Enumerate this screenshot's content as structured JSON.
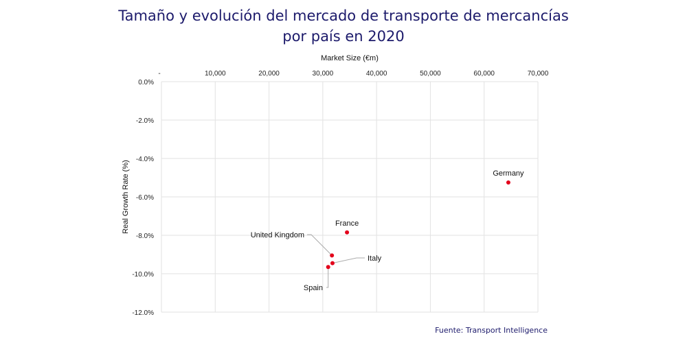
{
  "chart_data": {
    "type": "scatter",
    "title_line1": "Tamaño y evolución del mercado de transporte de mercancías",
    "title_line2": "por país en 2020",
    "xlabel": "Market Size (€m)",
    "ylabel": "Real Growth Rate (%)",
    "xlim": [
      0,
      70000
    ],
    "ylim": [
      -12,
      0
    ],
    "x_ticks": [
      "-",
      "10,000",
      "20,000",
      "30,000",
      "40,000",
      "50,000",
      "60,000",
      "70,000"
    ],
    "y_ticks": [
      "0.0%",
      "-2.0%",
      "-4.0%",
      "-6.0%",
      "-8.0%",
      "-10.0%",
      "-12.0%"
    ],
    "x_axis_position": "top",
    "grid": true,
    "point_color": "#e3001b",
    "points": [
      {
        "label": "Germany",
        "x": 64500,
        "y": -5.25
      },
      {
        "label": "France",
        "x": 34500,
        "y": -7.85
      },
      {
        "label": "United Kingdom",
        "x": 31700,
        "y": -9.05
      },
      {
        "label": "Italy",
        "x": 31800,
        "y": -9.45
      },
      {
        "label": "Spain",
        "x": 31000,
        "y": -9.65
      }
    ]
  },
  "source": "Fuente: Transport Intelligence"
}
